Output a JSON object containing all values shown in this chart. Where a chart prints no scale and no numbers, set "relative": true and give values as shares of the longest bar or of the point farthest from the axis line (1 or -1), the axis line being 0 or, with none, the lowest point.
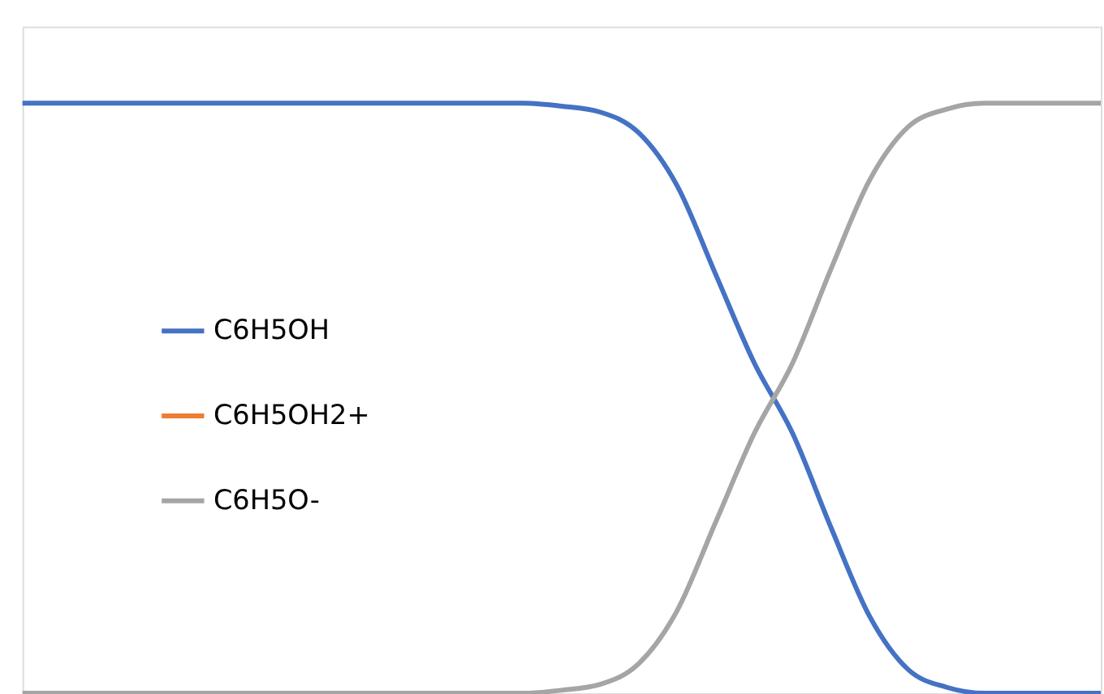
{
  "chart_data": {
    "type": "line",
    "relative": true,
    "legend": "left",
    "categories": [
      null,
      null,
      null,
      null,
      null,
      null,
      null,
      null,
      null,
      null,
      null,
      null,
      null,
      null,
      null,
      null,
      null,
      null,
      null,
      null,
      null,
      null,
      null,
      null,
      null,
      null,
      null,
      null,
      null
    ],
    "series": [
      {
        "name": "C6H5OH",
        "color": "#4472c4",
        "values": [
          1,
          1,
          1,
          1,
          1,
          1,
          1,
          1,
          1,
          1,
          1,
          1,
          1,
          1,
          0.995,
          0.985,
          0.95,
          0.86,
          0.71,
          0.56,
          0.44,
          0.28,
          0.13,
          0.04,
          0.01,
          0,
          0,
          0,
          0
        ]
      },
      {
        "name": "C6H5OH2+",
        "color": "#ed7d31",
        "values": [
          null,
          null,
          null,
          null,
          null,
          null,
          null,
          null,
          null,
          null,
          null,
          null,
          null,
          null,
          null,
          null,
          null,
          null,
          null,
          null,
          null,
          null,
          null,
          null,
          null,
          null,
          null,
          null,
          null
        ]
      },
      {
        "name": "C6H5O-",
        "color": "#a5a5a5",
        "values": [
          0,
          0,
          0,
          0,
          0,
          0,
          0,
          0,
          0,
          0,
          0,
          0,
          0,
          0,
          0.005,
          0.015,
          0.05,
          0.14,
          0.29,
          0.44,
          0.56,
          0.72,
          0.87,
          0.96,
          0.99,
          1,
          1,
          1,
          1
        ]
      }
    ]
  }
}
